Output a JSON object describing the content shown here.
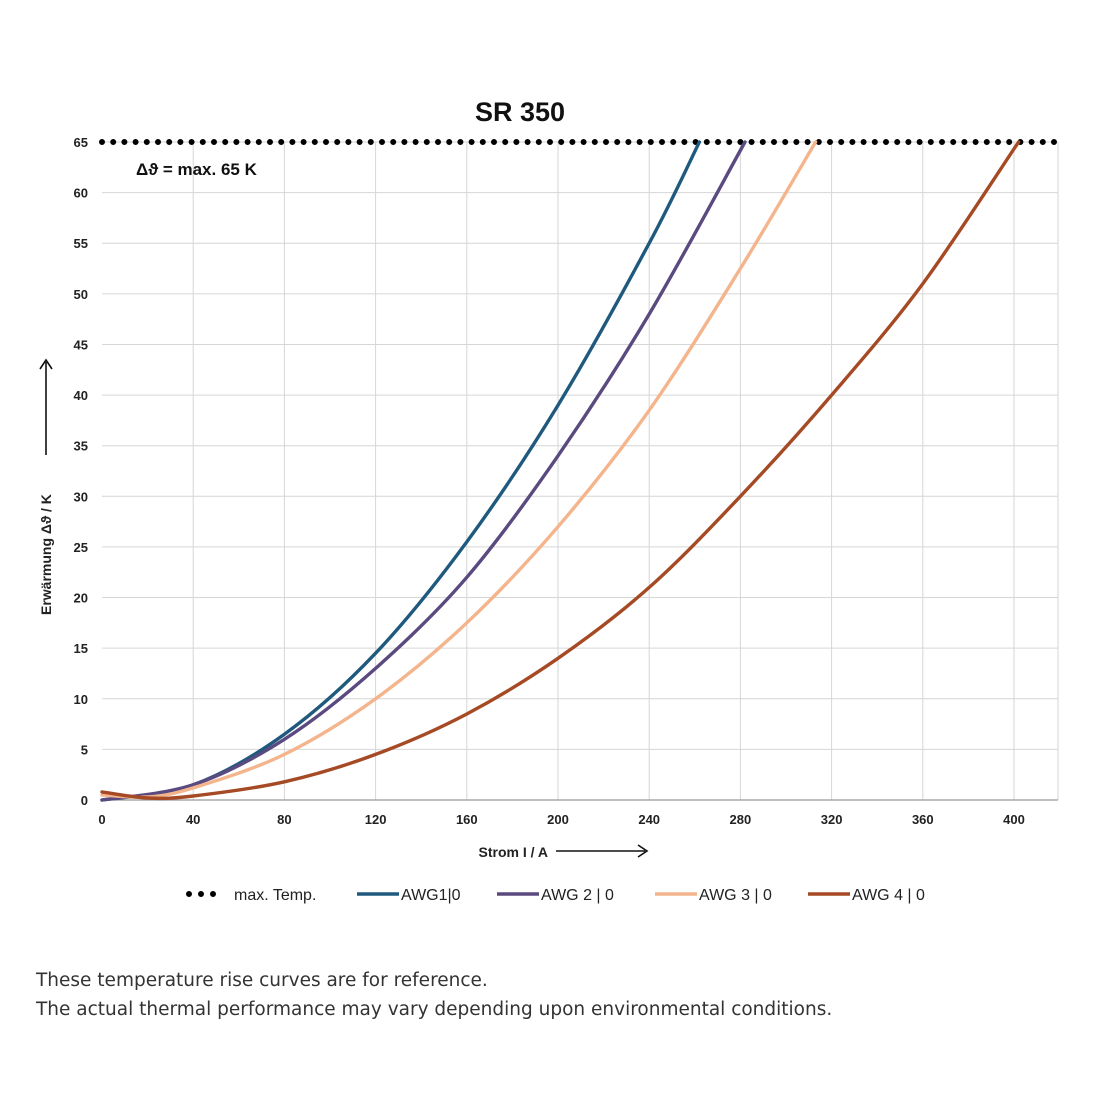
{
  "chart_data": {
    "type": "line",
    "title": "SR 350",
    "xlabel": "Strom I / A",
    "ylabel": "Erwärmung Δϑ / K",
    "xlim": [
      0,
      410
    ],
    "ylim": [
      0,
      65
    ],
    "xticks": [
      0,
      40,
      80,
      120,
      160,
      200,
      240,
      280,
      320,
      360,
      400
    ],
    "yticks": [
      0,
      5,
      10,
      15,
      20,
      25,
      30,
      35,
      40,
      45,
      50,
      55,
      60,
      65
    ],
    "grid": true,
    "legend_position": "bottom",
    "annotation": "Δϑ = max. 65 K",
    "reference_line": {
      "name": "max. Temp.",
      "y": 65,
      "style": "dotted",
      "color": "#000000"
    },
    "series": [
      {
        "name": "AWG1|0",
        "color": "#1f5a7e",
        "x": [
          0,
          40,
          80,
          120,
          160,
          200,
          240,
          262
        ],
        "y": [
          0,
          1.5,
          6.5,
          14.5,
          25.5,
          39,
          55,
          65
        ]
      },
      {
        "name": "AWG 2 | 0",
        "color": "#5a4a7f",
        "x": [
          0,
          40,
          80,
          120,
          160,
          200,
          240,
          282
        ],
        "y": [
          0,
          1.5,
          6,
          13,
          22,
          34,
          48,
          65
        ]
      },
      {
        "name": "AWG 3 | 0",
        "color": "#f4b48c",
        "x": [
          0,
          20,
          40,
          80,
          120,
          160,
          200,
          240,
          280,
          313
        ],
        "y": [
          0.5,
          0.3,
          1.2,
          4.5,
          10,
          17.5,
          27,
          38.5,
          52.5,
          65
        ]
      },
      {
        "name": "AWG 4 | 0",
        "color": "#a54a25",
        "x": [
          0,
          20,
          40,
          80,
          120,
          160,
          200,
          240,
          280,
          320,
          360,
          402
        ],
        "y": [
          0.8,
          0.2,
          0.4,
          1.8,
          4.5,
          8.5,
          14,
          21,
          30,
          40,
          51,
          65
        ]
      }
    ]
  },
  "footnote": {
    "line1": "These temperature rise curves are for reference.",
    "line2": "The actual thermal performance may vary depending upon environmental conditions."
  }
}
